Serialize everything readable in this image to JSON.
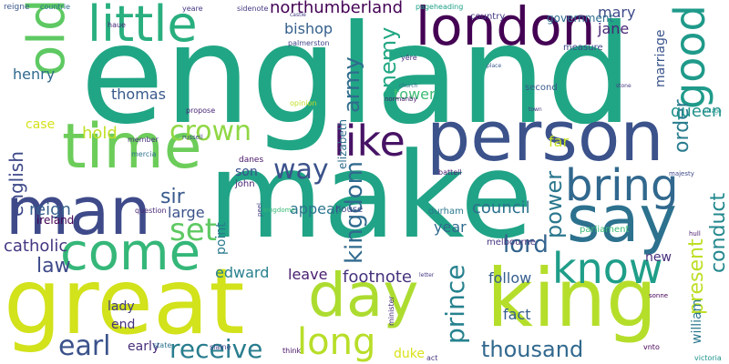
{
  "words": [
    {
      "text": "england",
      "color": "#21a685"
    },
    {
      "text": "make",
      "color": "#20a386"
    },
    {
      "text": "person",
      "color": "#3b528b"
    },
    {
      "text": "great",
      "color": "#d2e21b"
    },
    {
      "text": "king",
      "color": "#b5de2b"
    },
    {
      "text": "man",
      "color": "#3e4a89"
    },
    {
      "text": "time",
      "color": "#6ccd5a"
    },
    {
      "text": "say",
      "color": "#2c718e"
    },
    {
      "text": "london",
      "color": "#440154"
    },
    {
      "text": "day",
      "color": "#addc30"
    },
    {
      "text": "come",
      "color": "#35b779"
    },
    {
      "text": "little",
      "color": "#29af7f"
    },
    {
      "text": "old",
      "color": "#5ec962"
    },
    {
      "text": "bring",
      "color": "#31688e"
    },
    {
      "text": "know",
      "color": "#1f9e89"
    },
    {
      "text": "like",
      "color": "#471365"
    },
    {
      "text": "good",
      "color": "#1f9a8a"
    },
    {
      "text": "long",
      "color": "#b8de29"
    },
    {
      "text": "receive",
      "color": "#287d8e"
    },
    {
      "text": "earl",
      "color": "#3b528b"
    },
    {
      "text": "thousand",
      "color": "#31688e"
    },
    {
      "text": "prince",
      "color": "#26828e"
    },
    {
      "text": "set",
      "color": "#5ec962"
    },
    {
      "text": "crown",
      "color": "#8fd744"
    },
    {
      "text": "way",
      "color": "#3b528b"
    },
    {
      "text": "kingdom",
      "color": "#306a8e"
    },
    {
      "text": "lord",
      "color": "#33638d"
    },
    {
      "text": "power",
      "color": "#2a778e"
    },
    {
      "text": "army",
      "color": "#2f6c8e"
    },
    {
      "text": "enemy",
      "color": "#22a884"
    },
    {
      "text": "northumberland",
      "color": "#440154"
    },
    {
      "text": "conduct",
      "color": "#23888e"
    },
    {
      "text": "present",
      "color": "#bddf26"
    },
    {
      "text": "order",
      "color": "#287c8e"
    },
    {
      "text": "english",
      "color": "#3e4989"
    },
    {
      "text": "law",
      "color": "#3e4a89"
    },
    {
      "text": "sir",
      "color": "#38598c"
    },
    {
      "text": "reign",
      "color": "#355f8d"
    },
    {
      "text": "catholic",
      "color": "#453781"
    },
    {
      "text": "council",
      "color": "#2d708e"
    },
    {
      "text": "footnote",
      "color": "#46337e"
    },
    {
      "text": "queen",
      "color": "#21918c"
    },
    {
      "text": "hold",
      "color": "#c0df25"
    },
    {
      "text": "bishop",
      "color": "#35608d"
    },
    {
      "text": "henry",
      "color": "#306a8e"
    },
    {
      "text": "thomas",
      "color": "#38598c"
    },
    {
      "text": "tower",
      "color": "#3dbc74"
    },
    {
      "text": "mary",
      "color": "#3e4a89"
    },
    {
      "text": "jane",
      "color": "#482576"
    },
    {
      "text": "marriage",
      "color": "#3a548c"
    },
    {
      "text": "william",
      "color": "#2a788e"
    },
    {
      "text": "edward",
      "color": "#27808e"
    },
    {
      "text": "lady",
      "color": "#433e85"
    },
    {
      "text": "end",
      "color": "#46337e"
    },
    {
      "text": "early",
      "color": "#472d7b"
    },
    {
      "text": "appear",
      "color": "#2b748e"
    },
    {
      "text": "leave",
      "color": "#481d6f"
    },
    {
      "text": "fact",
      "color": "#355e8d"
    },
    {
      "text": "follow",
      "color": "#355e8d"
    },
    {
      "text": "duke",
      "color": "#d8e219"
    },
    {
      "text": "year",
      "color": "#306a8e"
    },
    {
      "text": "son",
      "color": "#3b528b"
    },
    {
      "text": "large",
      "color": "#3b528b"
    },
    {
      "text": "point",
      "color": "#2a788e"
    },
    {
      "text": "far",
      "color": "#c8e020"
    },
    {
      "text": "new",
      "color": "#472f7d"
    },
    {
      "text": "elizabeth",
      "color": "#2e6e8e"
    },
    {
      "text": "case",
      "color": "#d5e21a"
    },
    {
      "text": "ireland",
      "color": "#440154"
    },
    {
      "text": "durham",
      "color": "#2a788e"
    },
    {
      "text": "government",
      "color": "#2e6e8e"
    },
    {
      "text": "second",
      "color": "#38598c"
    },
    {
      "text": "measure",
      "color": "#3e4a89"
    },
    {
      "text": "house",
      "color": "#3e4989"
    },
    {
      "text": "melbourne",
      "color": "#46337e"
    },
    {
      "text": "parliament",
      "color": "#3aba76"
    },
    {
      "text": "victoria",
      "color": "#1f948c"
    },
    {
      "text": "state",
      "color": "#2c728e"
    },
    {
      "text": "minister",
      "color": "#472c7a"
    },
    {
      "text": "vnto",
      "color": "#440154"
    },
    {
      "text": "slaine",
      "color": "#404688"
    },
    {
      "text": "think",
      "color": "#471365"
    },
    {
      "text": "act",
      "color": "#46337e"
    },
    {
      "text": "john",
      "color": "#482173"
    },
    {
      "text": "danes",
      "color": "#471365"
    },
    {
      "text": "question",
      "color": "#482878"
    },
    {
      "text": "battell",
      "color": "#482173"
    },
    {
      "text": "country",
      "color": "#443a83"
    },
    {
      "text": "propose",
      "color": "#482576"
    },
    {
      "text": "opinion",
      "color": "#c2df23"
    },
    {
      "text": "member",
      "color": "#46337e"
    },
    {
      "text": "mercia",
      "color": "#2c728e"
    },
    {
      "text": "russell",
      "color": "#3e4989"
    },
    {
      "text": "normanby",
      "color": "#481a6c"
    },
    {
      "text": "majesty",
      "color": "#3e4989"
    },
    {
      "text": "peel",
      "color": "#433e85"
    },
    {
      "text": "sonne",
      "color": "#440154"
    },
    {
      "text": "hull",
      "color": "#48186a"
    },
    {
      "text": "reigne",
      "color": "#39568c"
    },
    {
      "text": "countrie",
      "color": "#2e6e8e"
    },
    {
      "text": "haue",
      "color": "#482878"
    },
    {
      "text": "yeare",
      "color": "#453882"
    },
    {
      "text": "sidenote",
      "color": "#453882"
    },
    {
      "text": "pageheading",
      "color": "#1fa088"
    },
    {
      "text": "palmerston",
      "color": "#404688"
    },
    {
      "text": "yēre",
      "color": "#46337e"
    },
    {
      "text": "church",
      "color": "#2c718e"
    },
    {
      "text": "castle",
      "color": "#433e85"
    },
    {
      "text": "kingdome",
      "color": "#38b977"
    },
    {
      "text": "letter",
      "color": "#453882"
    },
    {
      "text": "place",
      "color": "#38598c"
    },
    {
      "text": "stone",
      "color": "#453781"
    },
    {
      "text": "town",
      "color": "#453882"
    },
    {
      "text": "village",
      "color": "#1f948c"
    }
  ]
}
